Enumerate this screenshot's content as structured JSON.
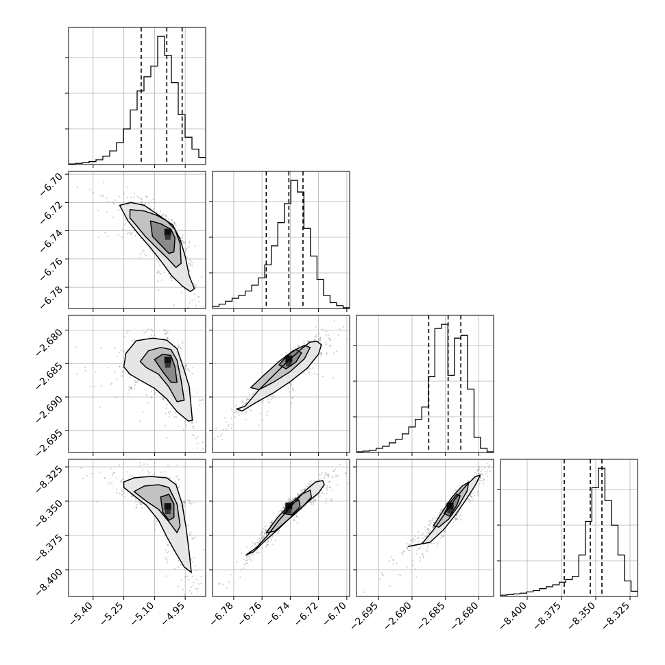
{
  "chart_data": {
    "type": "corner",
    "n_params": 4,
    "parameters": [
      {
        "range": [
          -5.52,
          -4.85
        ],
        "ticks": [
          -5.4,
          -5.25,
          -5.1,
          -4.95
        ],
        "tick_labels": [
          "−5.40",
          "−5.25",
          "−5.10",
          "−4.95"
        ],
        "quantiles": [
          -5.165,
          -5.04,
          -4.965
        ]
      },
      {
        "range": [
          -6.795,
          -6.698
        ],
        "ticks": [
          -6.78,
          -6.76,
          -6.74,
          -6.72,
          -6.7
        ],
        "tick_labels": [
          "−6.78",
          "−6.76",
          "−6.74",
          "−6.72",
          "−6.70"
        ],
        "quantiles": [
          -6.757,
          -6.741,
          -6.731
        ]
      },
      {
        "range": [
          -2.6983,
          -2.6778
        ],
        "ticks": [
          -2.695,
          -2.69,
          -2.685,
          -2.68
        ],
        "tick_labels": [
          "−2.695",
          "−2.690",
          "−2.685",
          "−2.680"
        ],
        "quantiles": [
          -2.6875,
          -2.6846,
          -2.6827
        ]
      },
      {
        "range": [
          -8.4195,
          -8.3195
        ],
        "ticks": [
          -8.4,
          -8.375,
          -8.35,
          -8.325
        ],
        "tick_labels": [
          "−8.400",
          "−8.375",
          "−8.350",
          "−8.325"
        ],
        "quantiles": [
          -8.373,
          -8.354,
          -8.3455
        ]
      }
    ],
    "marginals": [
      {
        "counts": [
          1,
          2,
          3,
          5,
          8,
          14,
          23,
          37,
          60,
          92,
          124,
          148,
          166,
          216,
          184,
          138,
          84,
          46,
          26,
          12
        ]
      },
      {
        "counts": [
          3,
          6,
          10,
          14,
          18,
          24,
          32,
          42,
          60,
          86,
          118,
          144,
          176,
          160,
          110,
          72,
          40,
          18,
          8,
          4,
          1
        ]
      },
      {
        "counts": [
          1,
          2,
          3,
          6,
          9,
          14,
          19,
          27,
          37,
          48,
          66,
          110,
          180,
          186,
          112,
          166,
          170,
          92,
          22,
          6,
          1
        ]
      },
      {
        "counts": [
          2,
          3,
          4,
          5,
          7,
          9,
          12,
          15,
          18,
          22,
          26,
          31,
          64,
          116,
          168,
          198,
          148,
          110,
          64,
          24,
          8
        ]
      }
    ],
    "pairs": [
      {
        "x": 0,
        "y": 1,
        "center": [
          -5.035,
          -6.741
        ],
        "contours": [
          [
            [
              -5.27,
              -6.722
            ],
            [
              -5.215,
              -6.72
            ],
            [
              -5.15,
              -6.722
            ],
            [
              -5.09,
              -6.728
            ],
            [
              -5.05,
              -6.732
            ],
            [
              -5.01,
              -6.736
            ],
            [
              -4.975,
              -6.746
            ],
            [
              -4.95,
              -6.758
            ],
            [
              -4.93,
              -6.772
            ],
            [
              -4.905,
              -6.781
            ],
            [
              -4.925,
              -6.783
            ],
            [
              -4.965,
              -6.779
            ],
            [
              -5.015,
              -6.772
            ],
            [
              -5.065,
              -6.762
            ],
            [
              -5.12,
              -6.752
            ],
            [
              -5.18,
              -6.742
            ],
            [
              -5.23,
              -6.733
            ]
          ],
          [
            [
              -5.22,
              -6.725
            ],
            [
              -5.15,
              -6.726
            ],
            [
              -5.09,
              -6.729
            ],
            [
              -5.04,
              -6.733
            ],
            [
              -5.0,
              -6.739
            ],
            [
              -4.975,
              -6.749
            ],
            [
              -4.97,
              -6.763
            ],
            [
              -4.995,
              -6.766
            ],
            [
              -5.04,
              -6.759
            ],
            [
              -5.09,
              -6.752
            ],
            [
              -5.145,
              -6.744
            ],
            [
              -5.19,
              -6.736
            ],
            [
              -5.22,
              -6.731
            ]
          ],
          [
            [
              -5.12,
              -6.733
            ],
            [
              -5.07,
              -6.735
            ],
            [
              -5.02,
              -6.739
            ],
            [
              -5.0,
              -6.745
            ],
            [
              -5.005,
              -6.755
            ],
            [
              -5.03,
              -6.756
            ],
            [
              -5.07,
              -6.75
            ],
            [
              -5.11,
              -6.744
            ]
          ]
        ]
      },
      {
        "x": 0,
        "y": 2,
        "center": [
          -5.035,
          -2.6845
        ],
        "contours": [
          [
            [
              -5.25,
              -2.6855
            ],
            [
              -5.24,
              -2.6835
            ],
            [
              -5.19,
              -2.6816
            ],
            [
              -5.11,
              -2.6812
            ],
            [
              -5.04,
              -2.6815
            ],
            [
              -4.99,
              -2.6828
            ],
            [
              -4.96,
              -2.6855
            ],
            [
              -4.93,
              -2.6885
            ],
            [
              -4.915,
              -2.6935
            ],
            [
              -4.935,
              -2.6936
            ],
            [
              -4.99,
              -2.6922
            ],
            [
              -5.04,
              -2.6903
            ],
            [
              -5.1,
              -2.6887
            ],
            [
              -5.17,
              -2.6875
            ],
            [
              -5.22,
              -2.6866
            ]
          ],
          [
            [
              -5.17,
              -2.6847
            ],
            [
              -5.13,
              -2.6831
            ],
            [
              -5.07,
              -2.6826
            ],
            [
              -5.02,
              -2.6829
            ],
            [
              -4.99,
              -2.6845
            ],
            [
              -4.97,
              -2.6875
            ],
            [
              -4.955,
              -2.6905
            ],
            [
              -4.99,
              -2.6907
            ],
            [
              -5.03,
              -2.6885
            ],
            [
              -5.08,
              -2.6866
            ],
            [
              -5.14,
              -2.6856
            ]
          ],
          [
            [
              -5.1,
              -2.6844
            ],
            [
              -5.06,
              -2.6836
            ],
            [
              -5.02,
              -2.6838
            ],
            [
              -5.0,
              -2.6855
            ],
            [
              -4.99,
              -2.6878
            ],
            [
              -5.02,
              -2.6878
            ],
            [
              -5.06,
              -2.6862
            ]
          ]
        ]
      },
      {
        "x": 1,
        "y": 2,
        "center": [
          -6.741,
          -2.6843
        ],
        "contours": [
          [
            [
              -6.778,
              -2.6918
            ],
            [
              -6.772,
              -2.6914
            ],
            [
              -6.762,
              -2.6889
            ],
            [
              -6.752,
              -2.6868
            ],
            [
              -6.742,
              -2.6847
            ],
            [
              -6.732,
              -2.6828
            ],
            [
              -6.726,
              -2.6818
            ],
            [
              -6.721,
              -2.6817
            ],
            [
              -6.718,
              -2.6822
            ],
            [
              -6.72,
              -2.6836
            ],
            [
              -6.728,
              -2.6857
            ],
            [
              -6.74,
              -2.6877
            ],
            [
              -6.752,
              -2.6894
            ],
            [
              -6.764,
              -2.6908
            ],
            [
              -6.774,
              -2.6921
            ]
          ],
          [
            [
              -6.768,
              -2.6886
            ],
            [
              -6.758,
              -2.6866
            ],
            [
              -6.748,
              -2.6847
            ],
            [
              -6.738,
              -2.6831
            ],
            [
              -6.73,
              -2.6823
            ],
            [
              -6.726,
              -2.6826
            ],
            [
              -6.73,
              -2.6843
            ],
            [
              -6.74,
              -2.6862
            ],
            [
              -6.752,
              -2.6878
            ],
            [
              -6.762,
              -2.6889
            ]
          ],
          [
            [
              -6.748,
              -2.6852
            ],
            [
              -6.742,
              -2.6838
            ],
            [
              -6.736,
              -2.6829
            ],
            [
              -6.732,
              -2.6834
            ],
            [
              -6.736,
              -2.6848
            ],
            [
              -6.743,
              -2.6858
            ]
          ]
        ]
      },
      {
        "x": 0,
        "y": 3,
        "center": [
          -5.035,
          -8.354
        ],
        "contours": [
          [
            [
              -5.25,
              -8.34
            ],
            [
              -5.25,
              -8.336
            ],
            [
              -5.2,
              -8.333
            ],
            [
              -5.12,
              -8.332
            ],
            [
              -5.04,
              -8.333
            ],
            [
              -4.995,
              -8.338
            ],
            [
              -4.965,
              -8.352
            ],
            [
              -4.945,
              -8.37
            ],
            [
              -4.93,
              -8.388
            ],
            [
              -4.92,
              -8.402
            ],
            [
              -4.955,
              -8.398
            ],
            [
              -4.995,
              -8.388
            ],
            [
              -5.04,
              -8.376
            ],
            [
              -5.08,
              -8.364
            ],
            [
              -5.14,
              -8.353
            ],
            [
              -5.2,
              -8.346
            ]
          ],
          [
            [
              -5.2,
              -8.343
            ],
            [
              -5.15,
              -8.339
            ],
            [
              -5.08,
              -8.338
            ],
            [
              -5.03,
              -8.34
            ],
            [
              -4.99,
              -8.352
            ],
            [
              -4.975,
              -8.368
            ],
            [
              -4.99,
              -8.373
            ],
            [
              -5.03,
              -8.365
            ],
            [
              -5.08,
              -8.356
            ],
            [
              -5.14,
              -8.35
            ]
          ],
          [
            [
              -5.07,
              -8.347
            ],
            [
              -5.03,
              -8.345
            ],
            [
              -5.005,
              -8.352
            ],
            [
              -5.005,
              -8.362
            ],
            [
              -5.03,
              -8.364
            ],
            [
              -5.06,
              -8.358
            ]
          ]
        ]
      },
      {
        "x": 1,
        "y": 3,
        "center": [
          -6.741,
          -8.3535
        ],
        "contours": [
          [
            [
              -6.771,
              -8.389
            ],
            [
              -6.764,
              -8.384
            ],
            [
              -6.756,
              -8.375
            ],
            [
              -6.748,
              -8.364
            ],
            [
              -6.738,
              -8.352
            ],
            [
              -6.729,
              -8.342
            ],
            [
              -6.722,
              -8.336
            ],
            [
              -6.717,
              -8.335
            ],
            [
              -6.716,
              -8.338
            ],
            [
              -6.72,
              -8.344
            ],
            [
              -6.728,
              -8.351
            ],
            [
              -6.738,
              -8.36
            ],
            [
              -6.748,
              -8.37
            ],
            [
              -6.758,
              -8.379
            ],
            [
              -6.766,
              -8.387
            ]
          ],
          [
            [
              -6.757,
              -8.373
            ],
            [
              -6.749,
              -8.362
            ],
            [
              -6.74,
              -8.352
            ],
            [
              -6.732,
              -8.345
            ],
            [
              -6.726,
              -8.342
            ],
            [
              -6.725,
              -8.347
            ],
            [
              -6.732,
              -8.355
            ],
            [
              -6.742,
              -8.364
            ],
            [
              -6.751,
              -8.372
            ]
          ],
          [
            [
              -6.745,
              -8.359
            ],
            [
              -6.739,
              -8.352
            ],
            [
              -6.734,
              -8.349
            ],
            [
              -6.733,
              -8.354
            ],
            [
              -6.739,
              -8.36
            ]
          ]
        ]
      },
      {
        "x": 2,
        "y": 3,
        "center": [
          -2.6843,
          -8.3535
        ],
        "contours": [
          [
            [
              -2.6905,
              -8.383
            ],
            [
              -2.6885,
              -8.381
            ],
            [
              -2.6868,
              -8.371
            ],
            [
              -2.6852,
              -8.36
            ],
            [
              -2.6835,
              -8.348
            ],
            [
              -2.6818,
              -8.338
            ],
            [
              -2.6805,
              -8.332
            ],
            [
              -2.6798,
              -8.331
            ],
            [
              -2.6805,
              -8.338
            ],
            [
              -2.6818,
              -8.348
            ],
            [
              -2.6835,
              -8.36
            ],
            [
              -2.6853,
              -8.371
            ],
            [
              -2.6873,
              -8.38
            ]
          ],
          [
            [
              -2.6868,
              -8.368
            ],
            [
              -2.6855,
              -8.358
            ],
            [
              -2.684,
              -8.347
            ],
            [
              -2.6825,
              -8.339
            ],
            [
              -2.6815,
              -8.336
            ],
            [
              -2.6818,
              -8.343
            ],
            [
              -2.683,
              -8.353
            ],
            [
              -2.6845,
              -8.363
            ],
            [
              -2.686,
              -8.369
            ]
          ],
          [
            [
              -2.6852,
              -8.359
            ],
            [
              -2.6843,
              -8.351
            ],
            [
              -2.6833,
              -8.345
            ],
            [
              -2.6828,
              -8.346
            ],
            [
              -2.6833,
              -8.353
            ],
            [
              -2.6844,
              -8.361
            ]
          ]
        ]
      }
    ]
  }
}
